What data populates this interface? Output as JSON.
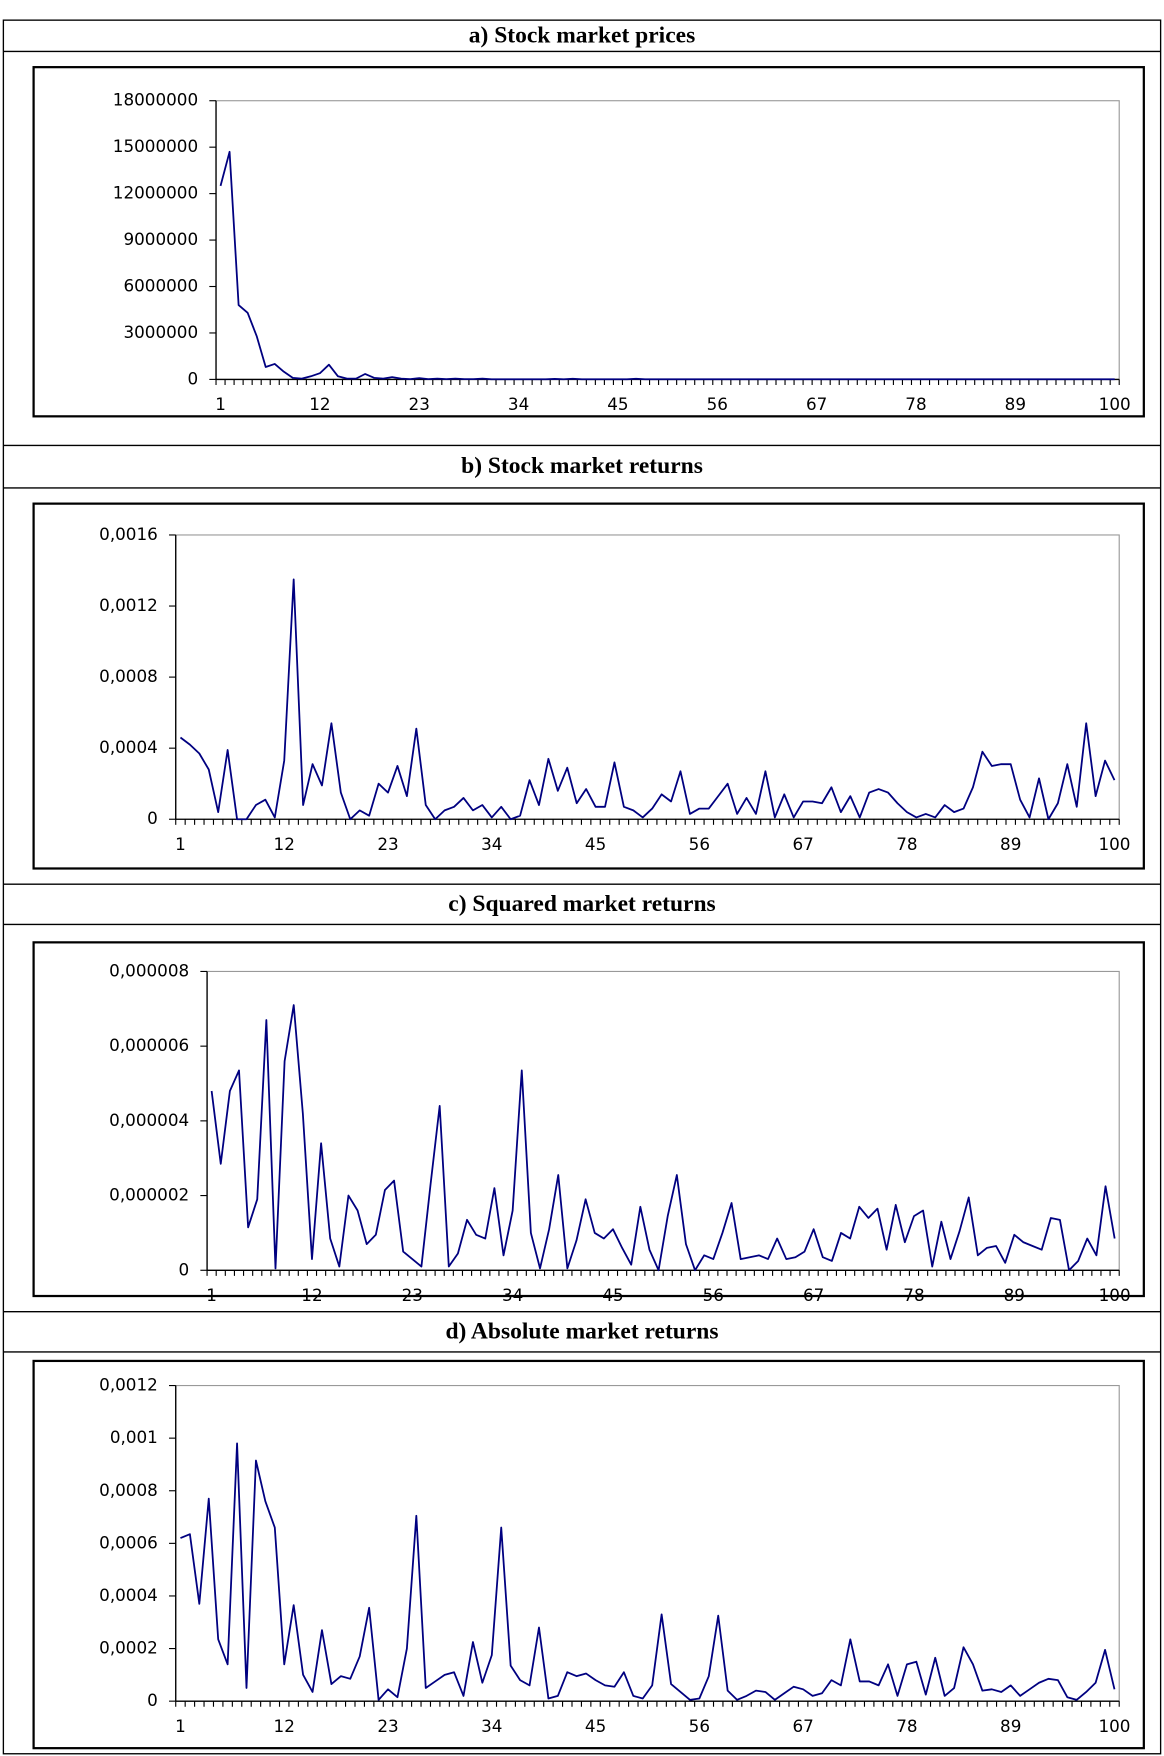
{
  "chart_data": [
    {
      "type": "line",
      "title": "a) Stock market prices",
      "color": "#000080",
      "categories": [
        1,
        null,
        null,
        null,
        null,
        null,
        null,
        null,
        null,
        null,
        null,
        12,
        null,
        null,
        null,
        null,
        null,
        null,
        null,
        null,
        null,
        null,
        23,
        null,
        null,
        null,
        null,
        null,
        null,
        null,
        null,
        null,
        null,
        34,
        null,
        null,
        null,
        null,
        null,
        null,
        null,
        null,
        null,
        null,
        45,
        null,
        null,
        null,
        null,
        null,
        null,
        null,
        null,
        null,
        null,
        56,
        null,
        null,
        null,
        null,
        null,
        null,
        null,
        null,
        null,
        null,
        67,
        null,
        null,
        null,
        null,
        null,
        null,
        null,
        null,
        null,
        null,
        78,
        null,
        null,
        null,
        null,
        null,
        null,
        null,
        null,
        null,
        null,
        89,
        null,
        null,
        null,
        null,
        null,
        null,
        null,
        null,
        null,
        null,
        100
      ],
      "values": [
        12500000,
        14700000,
        4800000,
        4300000,
        2800000,
        800000,
        1000000,
        500000,
        100000,
        50000,
        200000,
        400000,
        950000,
        200000,
        50000,
        50000,
        350000,
        100000,
        50000,
        150000,
        50000,
        20000,
        80000,
        20000,
        50000,
        20000,
        50000,
        20000,
        20000,
        50000,
        10000,
        10000,
        10000,
        10000,
        10000,
        10000,
        10000,
        30000,
        10000,
        40000,
        10000,
        10000,
        10000,
        10000,
        10000,
        10000,
        40000,
        10000,
        10000,
        10000,
        10000,
        10000,
        10000,
        10000,
        10000,
        10000,
        10000,
        10000,
        10000,
        10000,
        10000,
        10000,
        10000,
        10000,
        10000,
        10000,
        10000,
        10000,
        10000,
        10000,
        10000,
        10000,
        10000,
        10000,
        10000,
        10000,
        10000,
        10000,
        10000,
        10000,
        10000,
        10000,
        10000,
        10000,
        10000,
        10000,
        10000,
        10000,
        10000,
        10000,
        10000,
        10000,
        10000,
        10000,
        10000,
        10000,
        10000,
        10000,
        10000,
        10000
      ],
      "ylim": [
        0,
        18000000
      ],
      "yticks": [
        0,
        3000000,
        6000000,
        9000000,
        12000000,
        15000000,
        18000000
      ]
    },
    {
      "type": "line",
      "title": "b) Stock market returns",
      "color": "#000080",
      "categories": [
        1,
        null,
        null,
        null,
        null,
        null,
        null,
        null,
        null,
        null,
        null,
        12,
        null,
        null,
        null,
        null,
        null,
        null,
        null,
        null,
        null,
        null,
        23,
        null,
        null,
        null,
        null,
        null,
        null,
        null,
        null,
        null,
        null,
        34,
        null,
        null,
        null,
        null,
        null,
        null,
        null,
        null,
        null,
        null,
        45,
        null,
        null,
        null,
        null,
        null,
        null,
        null,
        null,
        null,
        null,
        56,
        null,
        null,
        null,
        null,
        null,
        null,
        null,
        null,
        null,
        null,
        67,
        null,
        null,
        null,
        null,
        null,
        null,
        null,
        null,
        null,
        null,
        78,
        null,
        null,
        null,
        null,
        null,
        null,
        null,
        null,
        null,
        null,
        89,
        null,
        null,
        null,
        null,
        null,
        null,
        null,
        null,
        null,
        null,
        100
      ],
      "values": [
        0.00046,
        0.00042,
        0.00037,
        0.00028,
        4e-05,
        0.00039,
        0,
        0,
        8e-05,
        0.00011,
        1e-05,
        0.00033,
        0.00135,
        8e-05,
        0.00031,
        0.00019,
        0.00054,
        0.00015,
        0,
        5e-05,
        2e-05,
        0.0002,
        0.00015,
        0.0003,
        0.00013,
        0.00051,
        8e-05,
        0,
        5e-05,
        7e-05,
        0.00012,
        5e-05,
        8e-05,
        1e-05,
        7e-05,
        0,
        2e-05,
        0.00022,
        8e-05,
        0.00034,
        0.00016,
        0.00029,
        9e-05,
        0.00017,
        7e-05,
        7e-05,
        0.00032,
        7e-05,
        5e-05,
        1e-05,
        6e-05,
        0.00014,
        0.0001,
        0.00027,
        3e-05,
        6e-05,
        6e-05,
        0.00013,
        0.0002,
        3e-05,
        0.00012,
        3e-05,
        0.00027,
        1e-05,
        0.00014,
        1e-05,
        0.0001,
        0.0001,
        9e-05,
        0.00018,
        4e-05,
        0.00013,
        1e-05,
        0.00015,
        0.00017,
        0.00015,
        9e-05,
        4e-05,
        1e-05,
        3e-05,
        1e-05,
        8e-05,
        4e-05,
        6e-05,
        0.00018,
        0.00038,
        0.0003,
        0.00031,
        0.00031,
        0.00011,
        1e-05,
        0.00023,
        0,
        9e-05,
        0.00031,
        7e-05,
        0.00054,
        0.00013,
        0.00033,
        0.00022
      ],
      "ylim": [
        0,
        0.0016
      ],
      "yticks": [
        0,
        {
          "value": 0.0004,
          "label": "0,0004"
        },
        {
          "value": 0.0008,
          "label": "0,0008"
        },
        {
          "value": 0.0012,
          "label": "0,0012"
        },
        {
          "value": 0.0016,
          "label": "0,0016"
        }
      ]
    },
    {
      "type": "line",
      "title": "c) Squared market returns",
      "color": "#000080",
      "categories": [
        1,
        null,
        null,
        null,
        null,
        null,
        null,
        null,
        null,
        null,
        null,
        12,
        null,
        null,
        null,
        null,
        null,
        null,
        null,
        null,
        null,
        null,
        23,
        null,
        null,
        null,
        null,
        null,
        null,
        null,
        null,
        null,
        null,
        34,
        null,
        null,
        null,
        null,
        null,
        null,
        null,
        null,
        null,
        null,
        45,
        null,
        null,
        null,
        null,
        null,
        null,
        null,
        null,
        null,
        null,
        56,
        null,
        null,
        null,
        null,
        null,
        null,
        null,
        null,
        null,
        null,
        67,
        null,
        null,
        null,
        null,
        null,
        null,
        null,
        null,
        null,
        null,
        78,
        null,
        null,
        null,
        null,
        null,
        null,
        null,
        null,
        null,
        null,
        89,
        null,
        null,
        null,
        null,
        null,
        null,
        null,
        null,
        null,
        null,
        100
      ],
      "values": [
        4.8e-06,
        2.85e-06,
        4.8e-06,
        5.35e-06,
        1.15e-06,
        1.9e-06,
        6.7e-06,
        5e-08,
        5.6e-06,
        7.1e-06,
        4.2e-06,
        3e-07,
        3.4e-06,
        8.5e-07,
        1e-07,
        2e-06,
        1.6e-06,
        7e-07,
        9.5e-07,
        2.15e-06,
        2.4e-06,
        5e-07,
        3e-07,
        1e-07,
        2.3e-06,
        4.4e-06,
        1e-07,
        4.5e-07,
        1.35e-06,
        9.5e-07,
        8.5e-07,
        2.2e-06,
        4e-07,
        1.6e-06,
        5.35e-06,
        1e-06,
        5e-08,
        1.1e-06,
        2.55e-06,
        5e-08,
        8e-07,
        1.9e-06,
        1e-06,
        8.5e-07,
        1.1e-06,
        6e-07,
        1.5e-07,
        1.7e-06,
        5.5e-07,
        0,
        1.45e-06,
        2.55e-06,
        7e-07,
        0,
        4e-07,
        3e-07,
        1e-06,
        1.8e-06,
        3e-07,
        3.5e-07,
        4e-07,
        3e-07,
        8.5e-07,
        3e-07,
        3.5e-07,
        5e-07,
        1.1e-06,
        3.5e-07,
        2.5e-07,
        1e-06,
        8.5e-07,
        1.7e-06,
        1.4e-06,
        1.65e-06,
        5.5e-07,
        1.75e-06,
        7.5e-07,
        1.45e-06,
        1.6e-06,
        1e-07,
        1.3e-06,
        3e-07,
        1.05e-06,
        1.95e-06,
        4e-07,
        6e-07,
        6.5e-07,
        2e-07,
        9.5e-07,
        7.5e-07,
        6.5e-07,
        5.5e-07,
        1.4e-06,
        1.35e-06,
        0,
        2.5e-07,
        8.5e-07,
        4e-07,
        2.25e-06,
        8.5e-07
      ],
      "ylim": [
        0,
        8e-06
      ],
      "yticks": [
        0,
        {
          "value": 2e-06,
          "label": "0,000002"
        },
        {
          "value": 4e-06,
          "label": "0,000004"
        },
        {
          "value": 6e-06,
          "label": "0,000006"
        },
        {
          "value": 8e-06,
          "label": "0,000008"
        }
      ]
    },
    {
      "type": "line",
      "title": "d) Absolute market returns",
      "color": "#000080",
      "categories": [
        1,
        null,
        null,
        null,
        null,
        null,
        null,
        null,
        null,
        null,
        null,
        12,
        null,
        null,
        null,
        null,
        null,
        null,
        null,
        null,
        null,
        null,
        23,
        null,
        null,
        null,
        null,
        null,
        null,
        null,
        null,
        null,
        null,
        34,
        null,
        null,
        null,
        null,
        null,
        null,
        null,
        null,
        null,
        null,
        45,
        null,
        null,
        null,
        null,
        null,
        null,
        null,
        null,
        null,
        null,
        56,
        null,
        null,
        null,
        null,
        null,
        null,
        null,
        null,
        null,
        null,
        67,
        null,
        null,
        null,
        null,
        null,
        null,
        null,
        null,
        null,
        null,
        78,
        null,
        null,
        null,
        null,
        null,
        null,
        null,
        null,
        null,
        null,
        89,
        null,
        null,
        null,
        null,
        null,
        null,
        null,
        null,
        null,
        null,
        100
      ],
      "values": [
        0.00062,
        0.000635,
        0.00037,
        0.00077,
        0.000235,
        0.00014,
        0.00098,
        5e-05,
        0.000915,
        0.00076,
        0.00066,
        0.00014,
        0.000365,
        0.0001,
        3.5e-05,
        0.00027,
        6.5e-05,
        9.5e-05,
        8.5e-05,
        0.00017,
        0.000355,
        5e-06,
        4.5e-05,
        1.5e-05,
        0.0002,
        0.000705,
        5e-05,
        7.5e-05,
        0.0001,
        0.00011,
        2e-05,
        0.000225,
        7e-05,
        0.000175,
        0.00066,
        0.000135,
        8e-05,
        6e-05,
        0.00028,
        1e-05,
        2e-05,
        0.00011,
        9.5e-05,
        0.000105,
        8e-05,
        6e-05,
        5.5e-05,
        0.00011,
        2e-05,
        1e-05,
        6e-05,
        0.00033,
        6.5e-05,
        3.5e-05,
        5e-06,
        1e-05,
        9.5e-05,
        0.000325,
        4e-05,
        5e-06,
        2e-05,
        4e-05,
        3.5e-05,
        5e-06,
        3e-05,
        5.5e-05,
        4.5e-05,
        2e-05,
        3e-05,
        8e-05,
        6e-05,
        0.000235,
        7.5e-05,
        7.5e-05,
        6e-05,
        0.00014,
        2e-05,
        0.00014,
        0.00015,
        2.5e-05,
        0.000165,
        2e-05,
        5e-05,
        0.000205,
        0.00014,
        4e-05,
        4.5e-05,
        3.5e-05,
        6e-05,
        2e-05,
        4.5e-05,
        7e-05,
        8.5e-05,
        8e-05,
        1.5e-05,
        5e-06,
        3.5e-05,
        7e-05,
        0.000195,
        4.5e-05
      ],
      "ylim": [
        0,
        0.0012
      ],
      "yticks": [
        0,
        {
          "value": 0.0002,
          "label": "0,0002"
        },
        {
          "value": 0.0004,
          "label": "0,0004"
        },
        {
          "value": 0.0006,
          "label": "0,0006"
        },
        {
          "value": 0.0008,
          "label": "0,0008"
        },
        {
          "value": 0.001,
          "label": "0,001"
        },
        {
          "value": 0.0012,
          "label": "0,0012"
        }
      ]
    }
  ]
}
